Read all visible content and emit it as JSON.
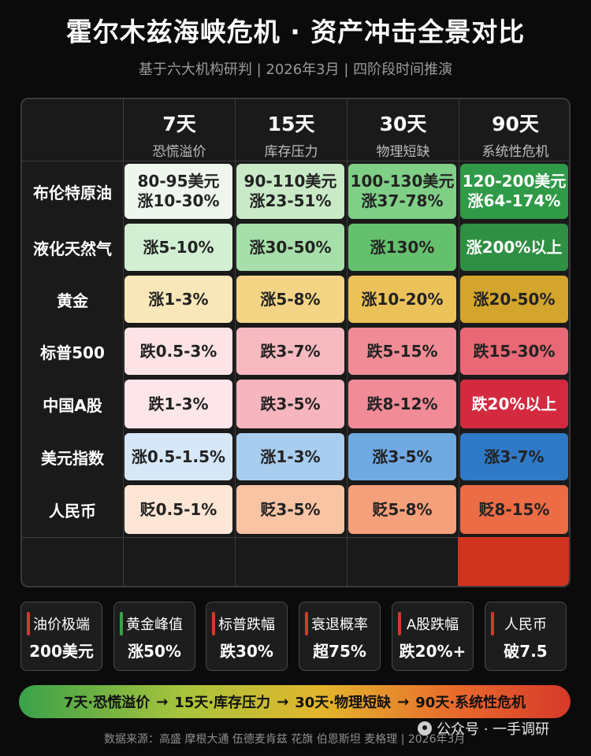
{
  "title": "霍尔木兹海峡危机 · 资产冲击全景对比",
  "subtitle": "基于六大机构研判 | 2026年3月 | 四阶段时间推演",
  "columns": [
    {
      "day": "7天",
      "phase": "恐慌溢价"
    },
    {
      "day": "15天",
      "phase": "库存压力"
    },
    {
      "day": "30天",
      "phase": "物理短缺"
    },
    {
      "day": "90天",
      "phase": "系统性危机"
    }
  ],
  "rows": [
    {
      "label": "布伦特原油",
      "cells": [
        {
          "l1": "80-95美元",
          "l2": "涨10-30%"
        },
        {
          "l1": "90-110美元",
          "l2": "涨23-51%"
        },
        {
          "l1": "100-130美元",
          "l2": "涨37-78%"
        },
        {
          "l1": "120-200美元",
          "l2": "涨64-174%"
        }
      ]
    },
    {
      "label": "液化天然气",
      "cells": [
        {
          "l1": "涨5-10%"
        },
        {
          "l1": "涨30-50%"
        },
        {
          "l1": "涨130%"
        },
        {
          "l1": "涨200%以上"
        }
      ]
    },
    {
      "label": "黄金",
      "cells": [
        {
          "l1": "涨1-3%"
        },
        {
          "l1": "涨5-8%"
        },
        {
          "l1": "涨10-20%"
        },
        {
          "l1": "涨20-50%"
        }
      ]
    },
    {
      "label": "标普500",
      "cells": [
        {
          "l1": "跌0.5-3%"
        },
        {
          "l1": "跌3-7%"
        },
        {
          "l1": "跌5-15%"
        },
        {
          "l1": "跌15-30%"
        }
      ]
    },
    {
      "label": "中国A股",
      "cells": [
        {
          "l1": "跌1-3%"
        },
        {
          "l1": "跌3-5%"
        },
        {
          "l1": "跌8-12%"
        },
        {
          "l1": "跌20%以上"
        }
      ]
    },
    {
      "label": "美元指数",
      "cells": [
        {
          "l1": "涨0.5-1.5%"
        },
        {
          "l1": "涨1-3%"
        },
        {
          "l1": "涨3-5%"
        },
        {
          "l1": "涨3-7%"
        }
      ]
    },
    {
      "label": "人民币",
      "cells": [
        {
          "l1": "贬0.5-1%"
        },
        {
          "l1": "贬3-5%"
        },
        {
          "l1": "贬5-8%"
        },
        {
          "l1": "贬8-15%"
        }
      ]
    }
  ],
  "colors": {
    "rows": [
      [
        "#eef6ee",
        "#c9e9c7",
        "#7fcf86",
        "#2f9a47"
      ],
      [
        "#d2efd3",
        "#a6dfa9",
        "#64c06c",
        "#2f8f43"
      ],
      [
        "#f8e7b8",
        "#f3d585",
        "#ebc25a",
        "#d3a52c"
      ],
      [
        "#fde3e6",
        "#f7b9c0",
        "#f08c95",
        "#e86875"
      ],
      [
        "#fde6ea",
        "#f7b6bf",
        "#f18b97",
        "#d42a40"
      ],
      [
        "#d6e7f7",
        "#a9cdee",
        "#6fa9e2",
        "#2f79c7"
      ],
      [
        "#fde6d6",
        "#f8c4a4",
        "#f4a07a",
        "#ec6c45"
      ]
    ],
    "text_on_dark": [
      [
        false,
        false,
        false,
        true
      ],
      [
        false,
        false,
        false,
        true
      ],
      [
        false,
        false,
        false,
        false
      ],
      [
        false,
        false,
        false,
        false
      ],
      [
        false,
        false,
        false,
        true
      ],
      [
        false,
        false,
        false,
        false
      ],
      [
        false,
        false,
        false,
        false
      ]
    ]
  },
  "cards": [
    {
      "title": "油价极端",
      "value": "200美元",
      "accent": "#d13a2e"
    },
    {
      "title": "黄金峰值",
      "value": "涨50%",
      "accent": "#3aa14a"
    },
    {
      "title": "标普跌幅",
      "value": "跌30%",
      "accent": "#d13a2e"
    },
    {
      "title": "衰退概率",
      "value": "超75%",
      "accent": "#d13a2e"
    },
    {
      "title": "A股跌幅",
      "value": "跌20%+",
      "accent": "#d13a2e"
    },
    {
      "title": "人民币",
      "value": "破7.5",
      "accent": "#d13a2e"
    }
  ],
  "timeline": {
    "s1": "7天·恐慌溢价",
    "s2": "15天·库存压力",
    "s3": "30天·物理短缺",
    "s4": "90天·系统性危机",
    "arrow": "→"
  },
  "footer": "数据来源：高盛 摩根大通 伍德麦肯兹 花旗 伯恩斯坦 麦格理 | 2026年3月",
  "watermark": "公众号 · 一手调研",
  "watermark_icon": "wechat-icon"
}
